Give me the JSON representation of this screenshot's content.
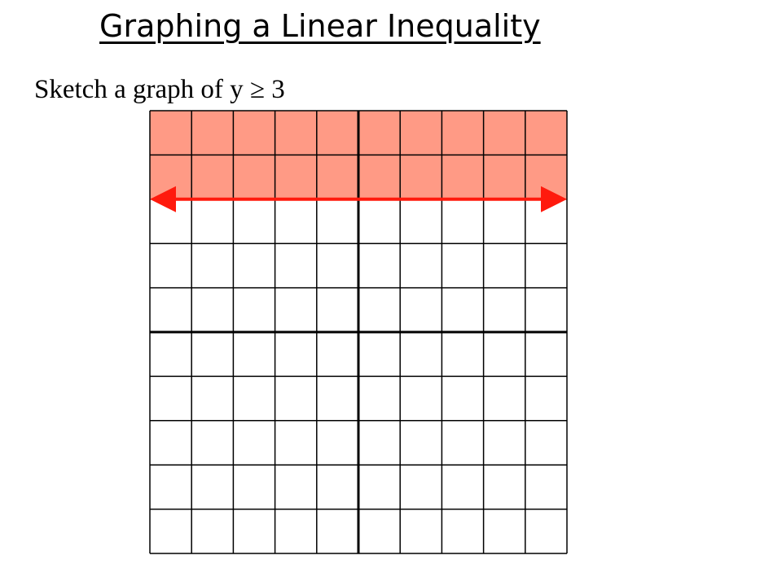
{
  "title": "Graphing a Linear Inequality",
  "subtitle": "Sketch a graph of y ≥ 3",
  "colors": {
    "shade": "#FF9A85",
    "boundary": "#FF1A0D",
    "grid": "#000000"
  },
  "chart_data": {
    "type": "area",
    "title": "",
    "xlabel": "",
    "ylabel": "",
    "xlim": [
      -5,
      5
    ],
    "ylim": [
      -5,
      5
    ],
    "grid": true,
    "inequality": "y >= 3",
    "boundary": {
      "y": 3,
      "style": "solid",
      "arrows": "both"
    },
    "shaded_region": {
      "from_y": 3,
      "to_y": 5
    }
  }
}
